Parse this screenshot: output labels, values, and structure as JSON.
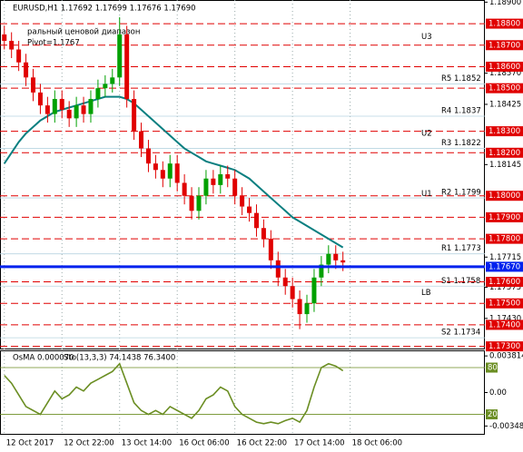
{
  "chart_data": {
    "type": "candlestick",
    "title": "EURUSD,H1  1.17692 1.17699 1.17676 1.17690",
    "subtitle": "ральный ценовой диапазон",
    "pivot_note": "Pivot=1.1767",
    "xlim": [
      -0.6,
      66.7
    ],
    "ylim": [
      1.1729,
      1.1891
    ],
    "xticks": [
      {
        "value": 0,
        "label": "12 Oct 2017"
      },
      {
        "value": 8,
        "label": "12 Oct 22:00"
      },
      {
        "value": 16,
        "label": "13 Oct 14:00"
      },
      {
        "value": 24,
        "label": "16 Oct 06:00"
      },
      {
        "value": 32,
        "label": "16 Oct 22:00"
      },
      {
        "value": 40,
        "label": "17 Oct 14:00"
      },
      {
        "value": 48,
        "label": "18 Oct 06:00"
      }
    ],
    "yticks": [
      {
        "value": 1.189,
        "label": "1.18900"
      },
      {
        "value": 1.1857,
        "label": "1.18570"
      },
      {
        "value": 1.18425,
        "label": "1.18425"
      },
      {
        "value": 1.18145,
        "label": "1.18145"
      },
      {
        "value": 1.17715,
        "label": "1.17715"
      },
      {
        "value": 1.17575,
        "label": "1.17575"
      },
      {
        "value": 1.1743,
        "label": "1.17430"
      }
    ],
    "levels": [
      {
        "value": 1.188,
        "label": "1.18800"
      },
      {
        "value": 1.187,
        "label": "1.18700"
      },
      {
        "value": 1.186,
        "label": "1.18600"
      },
      {
        "value": 1.185,
        "label": "1.18500"
      },
      {
        "value": 1.183,
        "label": "1.18300"
      },
      {
        "value": 1.182,
        "label": "1.18200"
      },
      {
        "value": 1.18,
        "label": "1.18000"
      },
      {
        "value": 1.179,
        "label": "1.17900"
      },
      {
        "value": 1.178,
        "label": "1.17800"
      },
      {
        "value": 1.176,
        "label": "1.17600"
      },
      {
        "value": 1.175,
        "label": "1.17500"
      },
      {
        "value": 1.174,
        "label": "1.17400"
      },
      {
        "value": 1.173,
        "label": "1.17300"
      }
    ],
    "level_color": "#e00000",
    "current_price": {
      "value": 1.1767,
      "label": "1.17670"
    },
    "current_color": "#0022ee",
    "pivot_labels": [
      {
        "text": "U3",
        "value": 1.1874
      },
      {
        "text": "U2",
        "value": 1.1829
      },
      {
        "text": "U1",
        "value": 1.1801
      },
      {
        "text": "LB",
        "value": 1.1755
      }
    ],
    "pivot_levels": [
      {
        "text": "R5 1.1852",
        "value": 1.1852
      },
      {
        "text": "R4 1.1837",
        "value": 1.1837
      },
      {
        "text": "R3 1.1822",
        "value": 1.1822
      },
      {
        "text": "R2 1.1799",
        "value": 1.1799
      },
      {
        "text": "R1 1.1773",
        "value": 1.1773
      },
      {
        "text": "S1 1.1758",
        "value": 1.1758
      },
      {
        "text": "S2 1.1734",
        "value": 1.1734
      }
    ],
    "up_color": "#00a000",
    "down_color": "#e00000",
    "open": [
      1.1875,
      1.1872,
      1.1868,
      1.1862,
      1.1855,
      1.1848,
      1.1842,
      1.1838,
      1.1845,
      1.184,
      1.1836,
      1.1842,
      1.1838,
      1.1845,
      1.185,
      1.1852,
      1.1855,
      1.1875,
      1.1845,
      1.183,
      1.1822,
      1.1815,
      1.1812,
      1.1808,
      1.1815,
      1.1806,
      1.18,
      1.1793,
      1.18,
      1.1808,
      1.1805,
      1.181,
      1.1808,
      1.18,
      1.1795,
      1.1792,
      1.1785,
      1.178,
      1.177,
      1.1762,
      1.1758,
      1.1752,
      1.1745,
      1.175,
      1.1762,
      1.1768,
      1.1773,
      1.177
    ],
    "high": [
      1.1879,
      1.1876,
      1.1872,
      1.1866,
      1.1859,
      1.1852,
      1.1846,
      1.1849,
      1.1849,
      1.1844,
      1.1846,
      1.1846,
      1.1849,
      1.1854,
      1.1856,
      1.1859,
      1.1883,
      1.1879,
      1.1849,
      1.1834,
      1.1826,
      1.1819,
      1.1816,
      1.1819,
      1.1819,
      1.181,
      1.1804,
      1.1804,
      1.1812,
      1.1812,
      1.1814,
      1.1814,
      1.1812,
      1.1804,
      1.1799,
      1.1796,
      1.1789,
      1.1784,
      1.1774,
      1.1766,
      1.1762,
      1.1756,
      1.1754,
      1.1766,
      1.1772,
      1.1777,
      1.1777,
      1.1774
    ],
    "low": [
      1.1868,
      1.1864,
      1.1858,
      1.1851,
      1.1844,
      1.1838,
      1.1834,
      1.1834,
      1.1836,
      1.1832,
      1.1832,
      1.1834,
      1.1834,
      1.1841,
      1.1846,
      1.1848,
      1.1851,
      1.1841,
      1.1826,
      1.1818,
      1.1811,
      1.1808,
      1.1804,
      1.1804,
      1.1802,
      1.1796,
      1.1789,
      1.1789,
      1.1796,
      1.1801,
      1.1801,
      1.1804,
      1.1796,
      1.1791,
      1.1788,
      1.1781,
      1.1776,
      1.1766,
      1.1758,
      1.1754,
      1.1748,
      1.1738,
      1.1741,
      1.1746,
      1.1758,
      1.1764,
      1.1766,
      1.1765
    ],
    "close": [
      1.1872,
      1.1868,
      1.1862,
      1.1855,
      1.1848,
      1.1842,
      1.1838,
      1.1845,
      1.184,
      1.1836,
      1.1842,
      1.1838,
      1.1845,
      1.185,
      1.1852,
      1.1855,
      1.1875,
      1.1845,
      1.183,
      1.1822,
      1.1815,
      1.1812,
      1.1808,
      1.1815,
      1.1806,
      1.18,
      1.1793,
      1.18,
      1.1808,
      1.1805,
      1.181,
      1.1808,
      1.18,
      1.1795,
      1.1792,
      1.1785,
      1.178,
      1.177,
      1.1762,
      1.1758,
      1.1752,
      1.1745,
      1.175,
      1.1762,
      1.1768,
      1.1773,
      1.177,
      1.1769
    ],
    "ma": {
      "color": "#0a7f80",
      "values": [
        1.1815,
        1.182,
        1.1825,
        1.1829,
        1.1832,
        1.1835,
        1.1837,
        1.1839,
        1.184,
        1.1841,
        1.1842,
        1.1843,
        1.1844,
        1.1845,
        1.1846,
        1.1846,
        1.1846,
        1.1845,
        1.1843,
        1.184,
        1.1837,
        1.1834,
        1.1831,
        1.1828,
        1.1825,
        1.1822,
        1.182,
        1.1818,
        1.1816,
        1.1815,
        1.1814,
        1.1813,
        1.1812,
        1.181,
        1.1808,
        1.1805,
        1.1802,
        1.1799,
        1.1796,
        1.1793,
        1.179,
        1.1788,
        1.1786,
        1.1784,
        1.1782,
        1.178,
        1.1778,
        1.1776
      ]
    },
    "indicator": {
      "label": "OsMA 0.000070",
      "sto_label": "Sto(13,3,3) 74.1438 76.3400",
      "ylim": [
        -5,
        101
      ],
      "yticks": [
        80,
        20
      ],
      "y2lim": [
        -0.0043,
        0.0043
      ],
      "y2ticks": [
        0.003814,
        {
          "value": 0,
          "label": "0.00"
        },
        -0.003483
      ],
      "color": "#6b8e23",
      "values": [
        70,
        60,
        45,
        30,
        25,
        20,
        35,
        50,
        40,
        45,
        55,
        50,
        60,
        65,
        70,
        75,
        85,
        60,
        35,
        25,
        20,
        25,
        20,
        30,
        25,
        20,
        15,
        25,
        40,
        45,
        55,
        50,
        30,
        20,
        15,
        10,
        8,
        10,
        8,
        12,
        15,
        10,
        25,
        55,
        80,
        85,
        82,
        76
      ]
    }
  }
}
